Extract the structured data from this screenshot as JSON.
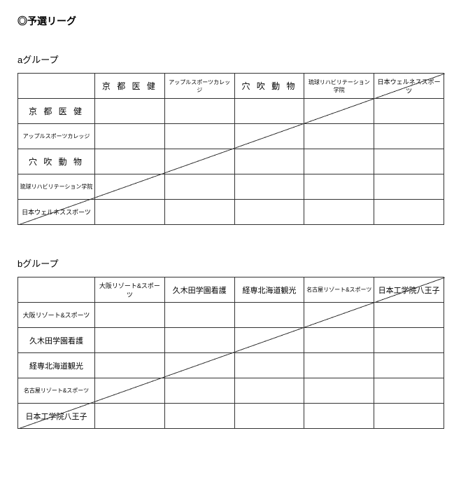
{
  "page_title": "◎予選リーグ",
  "groups": [
    {
      "label": "aグループ",
      "teams": [
        {
          "name": "京 都 医 健",
          "size": "fs-lg"
        },
        {
          "name": "アップルスポーツカレッジ",
          "size": "fs-xs"
        },
        {
          "name": "穴 吹 動 物",
          "size": "fs-lg"
        },
        {
          "name": "琉球リハビリテーション学院",
          "size": "fs-xs"
        },
        {
          "name": "日本ウェルネススポーツ",
          "size": "fs-sm"
        }
      ]
    },
    {
      "label": "bグループ",
      "teams": [
        {
          "name": "大阪リゾート&スポーツ",
          "size": "fs-sm"
        },
        {
          "name": "久木田学園看護",
          "size": "fs-md"
        },
        {
          "name": "経専北海道観光",
          "size": "fs-md"
        },
        {
          "name": "名古屋リゾート&スポーツ",
          "size": "fs-xs"
        },
        {
          "name": "日本工学院八王子",
          "size": "fs-md"
        }
      ]
    }
  ]
}
